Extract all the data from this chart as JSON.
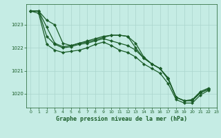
{
  "title": "Graphe pression niveau de la mer (hPa)",
  "background_color": "#c5ece4",
  "grid_color": "#aad4cc",
  "line_color": "#1a5c28",
  "xlim": [
    -0.5,
    23
  ],
  "ylim": [
    1019.4,
    1023.9
  ],
  "yticks": [
    1020,
    1021,
    1022,
    1023
  ],
  "xticks": [
    0,
    1,
    2,
    3,
    4,
    5,
    6,
    7,
    8,
    9,
    10,
    11,
    12,
    13,
    14,
    15,
    16,
    17,
    18,
    19,
    20,
    21,
    22,
    23
  ],
  "series": [
    [
      0,
      1023.6,
      1,
      1023.6,
      2,
      1023.2,
      3,
      1023.0,
      4,
      1022.2,
      5,
      1022.1,
      6,
      1022.2,
      7,
      1022.3,
      8,
      1022.4,
      9,
      1022.5,
      10,
      1022.55,
      11,
      1022.55,
      12,
      1022.5,
      13,
      1022.2,
      14,
      1021.6,
      15,
      1021.3,
      16,
      1021.1,
      17,
      1020.7,
      18,
      1019.85,
      19,
      1019.7,
      20,
      1019.75,
      21,
      1020.1,
      22,
      1020.25
    ],
    [
      0,
      1023.6,
      1,
      1023.6,
      2,
      1022.9,
      3,
      1022.2,
      4,
      1022.05,
      5,
      1022.1,
      6,
      1022.2,
      7,
      1022.25,
      8,
      1022.35,
      9,
      1022.45,
      10,
      1022.55,
      11,
      1022.55,
      12,
      1022.5,
      13,
      1022.0,
      14,
      1021.55,
      15,
      1021.3,
      16,
      1021.1,
      17,
      1020.65,
      18,
      1019.85,
      19,
      1019.7,
      20,
      1019.72,
      21,
      1020.05,
      22,
      1020.2
    ],
    [
      0,
      1023.6,
      1,
      1023.6,
      2,
      1022.5,
      3,
      1022.15,
      4,
      1022.0,
      5,
      1022.05,
      6,
      1022.15,
      7,
      1022.2,
      8,
      1022.3,
      9,
      1022.4,
      10,
      1022.3,
      11,
      1022.2,
      12,
      1022.1,
      13,
      1021.9,
      14,
      1021.55,
      15,
      1021.3,
      16,
      1021.1,
      17,
      1020.65,
      18,
      1019.85,
      19,
      1019.7,
      20,
      1019.7,
      21,
      1020.05,
      22,
      1020.2
    ],
    [
      0,
      1023.6,
      1,
      1023.5,
      2,
      1022.15,
      3,
      1021.9,
      4,
      1021.8,
      5,
      1021.85,
      6,
      1021.9,
      7,
      1022.0,
      8,
      1022.15,
      9,
      1022.25,
      10,
      1022.1,
      11,
      1021.9,
      12,
      1021.8,
      13,
      1021.6,
      14,
      1021.3,
      15,
      1021.1,
      16,
      1020.9,
      17,
      1020.45,
      18,
      1019.75,
      19,
      1019.6,
      20,
      1019.6,
      21,
      1019.95,
      22,
      1020.15
    ]
  ]
}
